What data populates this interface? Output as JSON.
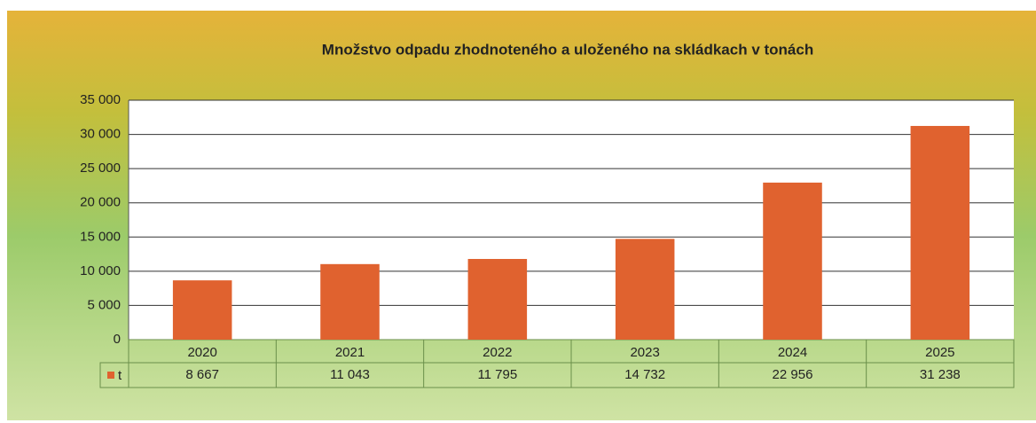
{
  "chart_data": {
    "type": "bar",
    "title": "Množstvo odpadu zhodnoteného a uloženého na skládkach v tonách",
    "categories": [
      "2020",
      "2021",
      "2022",
      "2023",
      "2024",
      "2025"
    ],
    "series": [
      {
        "name": "t",
        "color": "#e0622f",
        "values": [
          8667,
          11043,
          11795,
          14732,
          22956,
          31238
        ],
        "value_labels": [
          "8 667",
          "11 043",
          "11 795",
          "14 732",
          "22 956",
          "31 238"
        ]
      }
    ],
    "ylim": [
      0,
      35000
    ],
    "yticks": [
      {
        "value": 0,
        "label": "0"
      },
      {
        "value": 5000,
        "label": "5 000"
      },
      {
        "value": 10000,
        "label": "10 000"
      },
      {
        "value": 15000,
        "label": "15 000"
      },
      {
        "value": 20000,
        "label": "20 000"
      },
      {
        "value": 25000,
        "label": "25 000"
      },
      {
        "value": 30000,
        "label": "30 000"
      },
      {
        "value": 35000,
        "label": "35 000"
      }
    ],
    "grid": true
  }
}
